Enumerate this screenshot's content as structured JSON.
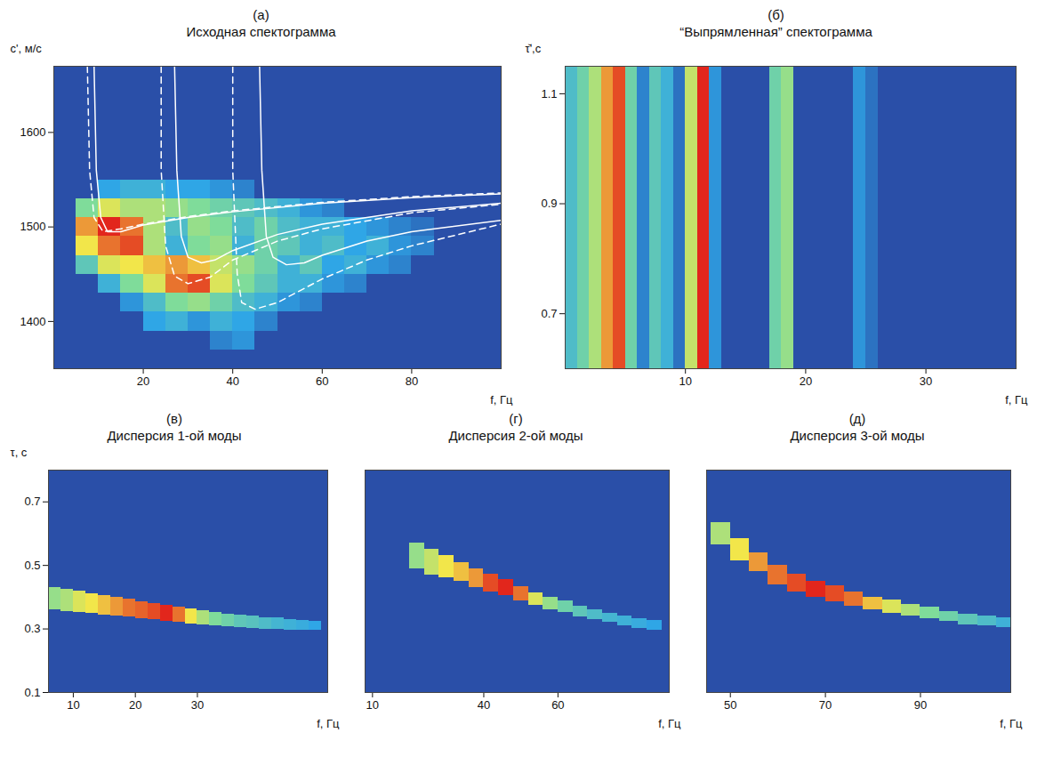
{
  "color_scale": {
    "values": [
      0,
      0.25,
      0.5,
      0.75,
      1
    ],
    "colors": [
      "#2a4fa8",
      "#2fa6e6",
      "#7fdc9a",
      "#f2e64a",
      "#e2261c"
    ]
  },
  "chart_data": [
    {
      "type": "heatmap",
      "label": "(а)",
      "title": "Исходная спектограмма",
      "x_label": "f, Гц",
      "y_label": "c', м/с",
      "xlim": [
        0,
        100
      ],
      "ylim": [
        1350,
        1670
      ],
      "xticks": [
        20,
        40,
        60,
        80
      ],
      "yticks": [
        1400,
        1500,
        1600
      ],
      "cells": {
        "x_edges": [
          0,
          5,
          10,
          15,
          20,
          25,
          30,
          35,
          40,
          45,
          50,
          55,
          60,
          65,
          70,
          75,
          80,
          85,
          90,
          95,
          100
        ],
        "y_edges": [
          1350,
          1370,
          1390,
          1410,
          1430,
          1450,
          1470,
          1490,
          1510,
          1530,
          1550,
          1570,
          1590,
          1610,
          1630,
          1650,
          1670
        ],
        "values": [
          [
            0,
            0,
            0,
            0,
            0,
            0,
            0,
            0,
            0,
            0,
            0,
            0,
            0,
            0,
            0,
            0,
            0,
            0,
            0,
            0
          ],
          [
            0,
            0,
            0,
            0,
            0,
            0,
            0,
            0.15,
            0.2,
            0,
            0,
            0,
            0,
            0,
            0,
            0,
            0,
            0,
            0,
            0
          ],
          [
            0,
            0,
            0,
            0,
            0.25,
            0.3,
            0.2,
            0.3,
            0.25,
            0.15,
            0,
            0,
            0,
            0,
            0,
            0,
            0,
            0,
            0,
            0
          ],
          [
            0,
            0,
            0,
            0.2,
            0.35,
            0.5,
            0.55,
            0.45,
            0.35,
            0.3,
            0.2,
            0.15,
            0,
            0,
            0,
            0,
            0,
            0,
            0,
            0
          ],
          [
            0,
            0,
            0.3,
            0.5,
            0.7,
            0.9,
            0.95,
            0.7,
            0.5,
            0.4,
            0.3,
            0.3,
            0.2,
            0.15,
            0,
            0,
            0,
            0,
            0,
            0
          ],
          [
            0,
            0.4,
            0.7,
            0.75,
            0.8,
            0.85,
            0.8,
            0.65,
            0.55,
            0.45,
            0.3,
            0.4,
            0.25,
            0.3,
            0.2,
            0.15,
            0,
            0,
            0,
            0
          ],
          [
            0,
            0.75,
            0.9,
            0.95,
            0.6,
            0.3,
            0.5,
            0.55,
            0.3,
            0.45,
            0.4,
            0.3,
            0.35,
            0.25,
            0.3,
            0.2,
            0.15,
            0,
            0,
            0
          ],
          [
            0,
            0.85,
            1,
            0.9,
            0.6,
            0.35,
            0.55,
            0.5,
            0.35,
            0.45,
            0.35,
            0.3,
            0.3,
            0.25,
            0.2,
            0.15,
            0.1,
            0,
            0,
            0
          ],
          [
            0,
            0.5,
            0.7,
            0.6,
            0.6,
            0.55,
            0.5,
            0.45,
            0.4,
            0.35,
            0.3,
            0.2,
            0.15,
            0,
            0,
            0,
            0,
            0,
            0,
            0
          ],
          [
            0,
            0,
            0.25,
            0.3,
            0.3,
            0.25,
            0.25,
            0.2,
            0.15,
            0,
            0,
            0,
            0,
            0,
            0,
            0,
            0,
            0,
            0,
            0
          ],
          [
            0,
            0,
            0,
            0,
            0,
            0,
            0,
            0,
            0,
            0,
            0,
            0,
            0,
            0,
            0,
            0,
            0,
            0,
            0,
            0
          ],
          [
            0,
            0,
            0,
            0,
            0,
            0,
            0,
            0,
            0,
            0,
            0,
            0,
            0,
            0,
            0,
            0,
            0,
            0,
            0,
            0
          ],
          [
            0,
            0,
            0,
            0,
            0,
            0,
            0,
            0,
            0,
            0,
            0,
            0,
            0,
            0,
            0,
            0,
            0,
            0,
            0,
            0
          ],
          [
            0,
            0,
            0,
            0,
            0,
            0,
            0,
            0,
            0,
            0,
            0,
            0,
            0,
            0,
            0,
            0,
            0,
            0,
            0,
            0
          ],
          [
            0,
            0,
            0,
            0,
            0,
            0,
            0,
            0,
            0,
            0,
            0,
            0,
            0,
            0,
            0,
            0,
            0,
            0,
            0,
            0
          ],
          [
            0,
            0,
            0,
            0,
            0,
            0,
            0,
            0,
            0,
            0,
            0,
            0,
            0,
            0,
            0,
            0,
            0,
            0,
            0,
            0
          ]
        ]
      },
      "series": [
        {
          "color": "#ffffff",
          "line_style": "solid",
          "x": [
            9,
            9.5,
            10.5,
            12,
            15,
            20,
            30,
            40,
            60,
            80,
            100
          ],
          "y": [
            1670,
            1560,
            1510,
            1495,
            1495,
            1502,
            1510,
            1516,
            1525,
            1531,
            1535
          ]
        },
        {
          "color": "#ffffff",
          "line_style": "dashed",
          "x": [
            7.5,
            8,
            9,
            11,
            15,
            20,
            30,
            40,
            60,
            80,
            100
          ],
          "y": [
            1670,
            1560,
            1510,
            1495,
            1498,
            1503,
            1511,
            1517,
            1526,
            1532,
            1536
          ]
        },
        {
          "color": "#ffffff",
          "line_style": "solid",
          "x": [
            27,
            27.5,
            28.5,
            30,
            33,
            36,
            40,
            50,
            60,
            80,
            100
          ],
          "y": [
            1670,
            1560,
            1490,
            1468,
            1462,
            1465,
            1475,
            1492,
            1503,
            1517,
            1525
          ]
        },
        {
          "color": "#ffffff",
          "line_style": "dashed",
          "x": [
            24,
            24,
            25,
            27,
            30,
            35,
            40,
            50,
            60,
            80,
            100
          ],
          "y": [
            1670,
            1560,
            1480,
            1448,
            1440,
            1447,
            1465,
            1485,
            1498,
            1515,
            1524
          ]
        },
        {
          "color": "#ffffff",
          "line_style": "solid",
          "x": [
            46,
            46.5,
            47.5,
            49,
            52,
            56,
            60,
            70,
            80,
            100
          ],
          "y": [
            1670,
            1560,
            1490,
            1468,
            1460,
            1462,
            1470,
            1485,
            1495,
            1507
          ]
        },
        {
          "color": "#ffffff",
          "line_style": "dashed",
          "x": [
            40,
            40,
            41,
            42,
            45,
            50,
            60,
            70,
            80,
            100
          ],
          "y": [
            1670,
            1560,
            1450,
            1420,
            1413,
            1420,
            1445,
            1465,
            1480,
            1503
          ]
        }
      ]
    },
    {
      "type": "heatmap",
      "label": "(б)",
      "title": "“Выпрямленная” спектограмма",
      "x_label": "f, Гц",
      "y_label": "τ̆',с",
      "xlim": [
        0,
        37.5
      ],
      "ylim": [
        0.6,
        1.15
      ],
      "xticks": [
        10,
        20,
        30
      ],
      "yticks": [
        0.7,
        0.9,
        1.1
      ],
      "cells": {
        "x_edges": [
          0,
          1,
          2,
          3,
          4,
          5,
          6,
          7,
          8,
          9,
          10,
          11,
          12,
          13,
          14,
          15,
          16,
          17,
          18,
          19,
          20,
          21,
          22,
          23,
          24,
          25,
          26,
          27,
          28,
          29,
          30,
          31,
          32,
          33,
          34,
          35,
          36,
          37,
          38
        ],
        "values": [
          0.35,
          0.45,
          0.6,
          0.85,
          0.95,
          0.45,
          0.15,
          0.4,
          0.3,
          0.1,
          0.65,
          1,
          0.2,
          0,
          0,
          0,
          0,
          0.45,
          0.55,
          0,
          0,
          0,
          0,
          0,
          0.2,
          0.1,
          0,
          0,
          0,
          0,
          0,
          0,
          0,
          0,
          0,
          0,
          0,
          0
        ]
      }
    },
    {
      "type": "ridge",
      "label": "(в)",
      "title": "Дисперсия 1-ой моды",
      "x_label": "f, Гц",
      "y_label": "τ, с",
      "xlim": [
        6,
        51
      ],
      "ylim": [
        0.1,
        0.8
      ],
      "xticks": [
        10,
        20,
        30
      ],
      "yticks": [
        0.1,
        0.3,
        0.5,
        0.7
      ],
      "ridge": {
        "x_edges": [
          6,
          8,
          10,
          12,
          14,
          16,
          18,
          20,
          22,
          24,
          26,
          28,
          30,
          32,
          34,
          36,
          38,
          40,
          42,
          44,
          46,
          48,
          50
        ],
        "tau": [
          0.395,
          0.39,
          0.385,
          0.38,
          0.375,
          0.37,
          0.365,
          0.36,
          0.355,
          0.35,
          0.345,
          0.34,
          0.335,
          0.33,
          0.327,
          0.324,
          0.321,
          0.318,
          0.316,
          0.314,
          0.312,
          0.31
        ],
        "values": [
          0.55,
          0.6,
          0.7,
          0.75,
          0.8,
          0.85,
          0.9,
          0.92,
          0.95,
          1,
          0.9,
          0.75,
          0.6,
          0.5,
          0.45,
          0.4,
          0.38,
          0.35,
          0.32,
          0.3,
          0.28,
          0.25
        ],
        "halfwidth": [
          0.035,
          0.035,
          0.033,
          0.032,
          0.03,
          0.03,
          0.028,
          0.027,
          0.026,
          0.025,
          0.024,
          0.023,
          0.022,
          0.021,
          0.02,
          0.02,
          0.019,
          0.018,
          0.018,
          0.017,
          0.016,
          0.015
        ]
      }
    },
    {
      "type": "ridge",
      "label": "(г)",
      "title": "Дисперсия 2-ой моды",
      "x_label": "f, Гц",
      "tick_labels": "x",
      "xlim": [
        8,
        90
      ],
      "ylim": [
        0.1,
        0.8
      ],
      "xticks": [
        10,
        40,
        60
      ],
      "ridge": {
        "x_edges": [
          20,
          24,
          28,
          32,
          36,
          40,
          44,
          48,
          52,
          56,
          60,
          64,
          68,
          72,
          76,
          80,
          84,
          88
        ],
        "tau": [
          0.53,
          0.51,
          0.495,
          0.48,
          0.46,
          0.445,
          0.43,
          0.41,
          0.395,
          0.38,
          0.37,
          0.355,
          0.345,
          0.335,
          0.325,
          0.318,
          0.312
        ],
        "values": [
          0.55,
          0.65,
          0.75,
          0.8,
          0.85,
          0.95,
          1,
          0.9,
          0.7,
          0.55,
          0.45,
          0.4,
          0.35,
          0.32,
          0.3,
          0.28,
          0.25
        ],
        "halfwidth": [
          0.04,
          0.04,
          0.035,
          0.03,
          0.03,
          0.028,
          0.025,
          0.022,
          0.02,
          0.02,
          0.018,
          0.018,
          0.015,
          0.015,
          0.015,
          0.015,
          0.015
        ]
      }
    },
    {
      "type": "ridge",
      "label": "(д)",
      "title": "Дисперсия 3-ой моды",
      "x_label": "f, Гц",
      "tick_labels": "x",
      "xlim": [
        45,
        109
      ],
      "ylim": [
        0.1,
        0.8
      ],
      "xticks": [
        50,
        70,
        90
      ],
      "ridge": {
        "x_edges": [
          46,
          50,
          54,
          58,
          62,
          66,
          70,
          74,
          78,
          82,
          86,
          90,
          94,
          98,
          102,
          106,
          110
        ],
        "tau": [
          0.6,
          0.55,
          0.51,
          0.47,
          0.445,
          0.425,
          0.41,
          0.395,
          0.38,
          0.37,
          0.36,
          0.35,
          0.34,
          0.33,
          0.325,
          0.32
        ],
        "values": [
          0.6,
          0.75,
          0.85,
          0.9,
          0.95,
          1,
          0.95,
          0.9,
          0.8,
          0.7,
          0.6,
          0.5,
          0.45,
          0.4,
          0.35,
          0.3
        ],
        "halfwidth": [
          0.035,
          0.035,
          0.03,
          0.03,
          0.028,
          0.025,
          0.025,
          0.022,
          0.02,
          0.02,
          0.018,
          0.018,
          0.016,
          0.016,
          0.015,
          0.015
        ]
      }
    }
  ]
}
